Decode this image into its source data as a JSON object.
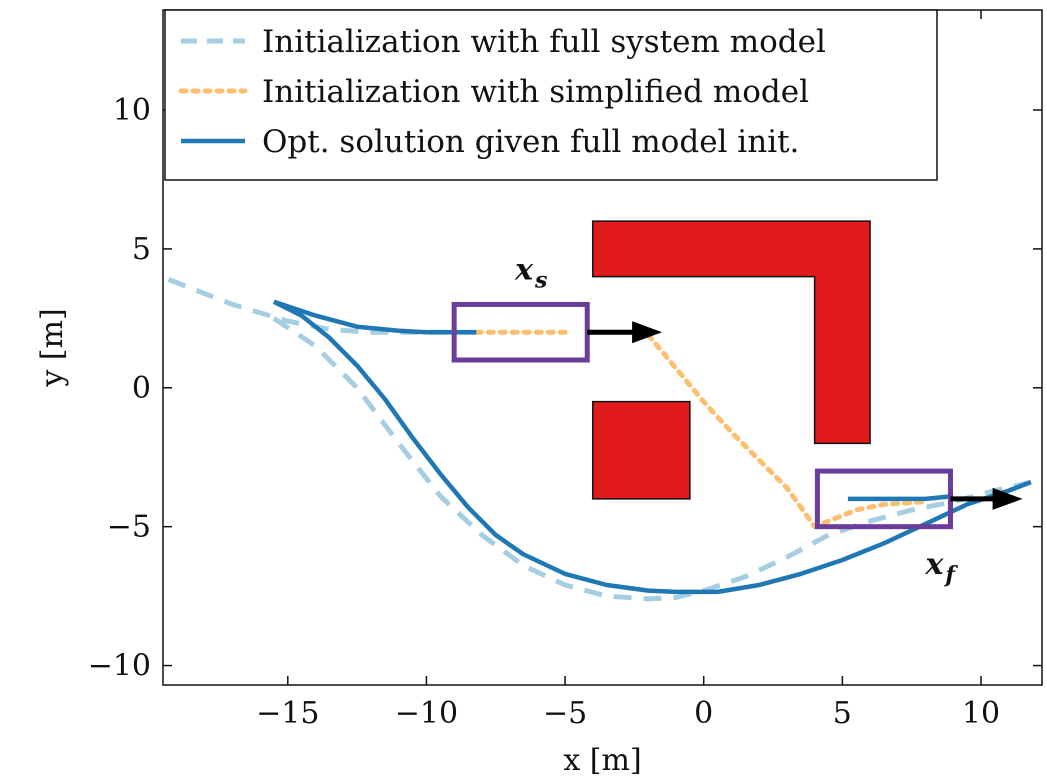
{
  "chart_data": {
    "type": "line",
    "xlabel": "x [m]",
    "ylabel": "y [m]",
    "xlim": [
      -19.5,
      12.2
    ],
    "ylim": [
      -10.7,
      13.6
    ],
    "xticks": [
      -15,
      -10,
      -5,
      0,
      5,
      10
    ],
    "xtick_labels": [
      "−15",
      "−10",
      "−5",
      "0",
      "5",
      "10"
    ],
    "yticks": [
      -10,
      -5,
      0,
      5,
      10
    ],
    "ytick_labels": [
      "−10",
      "−5",
      "0",
      "5",
      "10"
    ],
    "grid": false,
    "legend_position": "top-left",
    "series": [
      {
        "name": "Initialization with full system model",
        "style": "dashed",
        "color": "#a6cee3",
        "segments": [
          [
            [
              -19.3,
              3.9
            ],
            [
              -17.0,
              3.0
            ],
            [
              -15.0,
              2.4
            ],
            [
              -13.5,
              2.1
            ],
            [
              -12.0,
              2.0
            ],
            [
              -10.0,
              2.0
            ],
            [
              -8.2,
              2.0
            ]
          ],
          [
            [
              -15.5,
              2.5
            ],
            [
              -14.0,
              1.5
            ],
            [
              -12.5,
              0.0
            ],
            [
              -11.0,
              -2.0
            ],
            [
              -9.5,
              -3.9
            ],
            [
              -8.0,
              -5.3
            ],
            [
              -6.5,
              -6.4
            ],
            [
              -5.0,
              -7.1
            ],
            [
              -3.5,
              -7.5
            ],
            [
              -2.0,
              -7.6
            ],
            [
              -1.0,
              -7.55
            ],
            [
              0.0,
              -7.3
            ],
            [
              1.5,
              -6.8
            ],
            [
              3.0,
              -6.1
            ],
            [
              4.5,
              -5.3
            ],
            [
              6.0,
              -4.8
            ],
            [
              7.5,
              -4.4
            ],
            [
              9.0,
              -4.1
            ],
            [
              10.5,
              -3.7
            ],
            [
              11.8,
              -3.4
            ]
          ]
        ]
      },
      {
        "name": "Initialization with simplified model",
        "style": "dotted",
        "color": "#fdbf6f",
        "segments": [
          [
            [
              -8.2,
              2.0
            ],
            [
              -5.0,
              2.0
            ]
          ],
          [
            [
              -2.0,
              1.9
            ],
            [
              -1.0,
              0.7
            ],
            [
              0.0,
              -0.5
            ],
            [
              1.0,
              -1.6
            ],
            [
              2.0,
              -2.6
            ],
            [
              3.0,
              -3.6
            ],
            [
              3.5,
              -4.3
            ],
            [
              4.0,
              -5.0
            ],
            [
              4.5,
              -4.8
            ],
            [
              5.5,
              -4.4
            ],
            [
              6.5,
              -4.2
            ],
            [
              8.0,
              -4.1
            ]
          ]
        ]
      },
      {
        "name": "Opt. solution given full model init.",
        "style": "solid",
        "color": "#1f78b4",
        "segments": [
          [
            [
              -15.5,
              3.1
            ],
            [
              -14.0,
              2.6
            ],
            [
              -12.5,
              2.2
            ],
            [
              -11.0,
              2.05
            ],
            [
              -10.0,
              2.0
            ],
            [
              -8.2,
              2.0
            ]
          ],
          [
            [
              -15.5,
              3.1
            ],
            [
              -14.5,
              2.6
            ],
            [
              -13.5,
              1.8
            ],
            [
              -12.5,
              0.8
            ],
            [
              -11.5,
              -0.4
            ],
            [
              -10.5,
              -1.8
            ],
            [
              -9.5,
              -3.1
            ],
            [
              -8.5,
              -4.3
            ],
            [
              -7.5,
              -5.3
            ],
            [
              -6.5,
              -6.0
            ],
            [
              -5.0,
              -6.7
            ],
            [
              -3.5,
              -7.1
            ],
            [
              -2.0,
              -7.3
            ],
            [
              -1.0,
              -7.35
            ],
            [
              0.5,
              -7.35
            ],
            [
              2.0,
              -7.1
            ],
            [
              3.5,
              -6.7
            ],
            [
              5.0,
              -6.2
            ],
            [
              6.5,
              -5.6
            ],
            [
              8.0,
              -4.9
            ],
            [
              9.5,
              -4.2
            ],
            [
              11.0,
              -3.7
            ],
            [
              11.8,
              -3.4
            ]
          ],
          [
            [
              5.2,
              -4.0
            ],
            [
              6.5,
              -4.0
            ],
            [
              8.0,
              -4.0
            ],
            [
              9.0,
              -3.9
            ]
          ]
        ]
      }
    ],
    "obstacles": [
      {
        "name": "l-shaped-obstacle",
        "color": "#e31a1c",
        "polygon": [
          [
            -4.0,
            6.0
          ],
          [
            6.0,
            6.0
          ],
          [
            6.0,
            -2.0
          ],
          [
            4.0,
            -2.0
          ],
          [
            4.0,
            4.0
          ],
          [
            -4.0,
            4.0
          ]
        ]
      },
      {
        "name": "square-obstacle",
        "color": "#e31a1c",
        "polygon": [
          [
            -4.0,
            -0.5
          ],
          [
            -0.5,
            -0.5
          ],
          [
            -0.5,
            -4.0
          ],
          [
            -4.0,
            -4.0
          ]
        ]
      }
    ],
    "boxes": [
      {
        "name": "start-box",
        "color": "#6a3d9a",
        "rect": [
          -9.0,
          1.0,
          -4.2,
          3.0
        ]
      },
      {
        "name": "final-box",
        "color": "#6a3d9a",
        "rect": [
          4.1,
          -5.0,
          8.9,
          -3.0
        ]
      }
    ],
    "arrows": [
      {
        "name": "start-heading-arrow",
        "from": [
          -4.2,
          2.0
        ],
        "to": [
          -1.5,
          2.0
        ]
      },
      {
        "name": "final-heading-arrow",
        "from": [
          8.9,
          -4.0
        ],
        "to": [
          11.5,
          -4.0
        ]
      }
    ],
    "annotations": [
      {
        "name": "start-state-label",
        "text": "x",
        "subscript": "s",
        "pos": [
          -6.8,
          3.9
        ]
      },
      {
        "name": "final-state-label",
        "text": "x",
        "subscript": "f",
        "pos": [
          8.0,
          -6.7
        ]
      }
    ]
  }
}
